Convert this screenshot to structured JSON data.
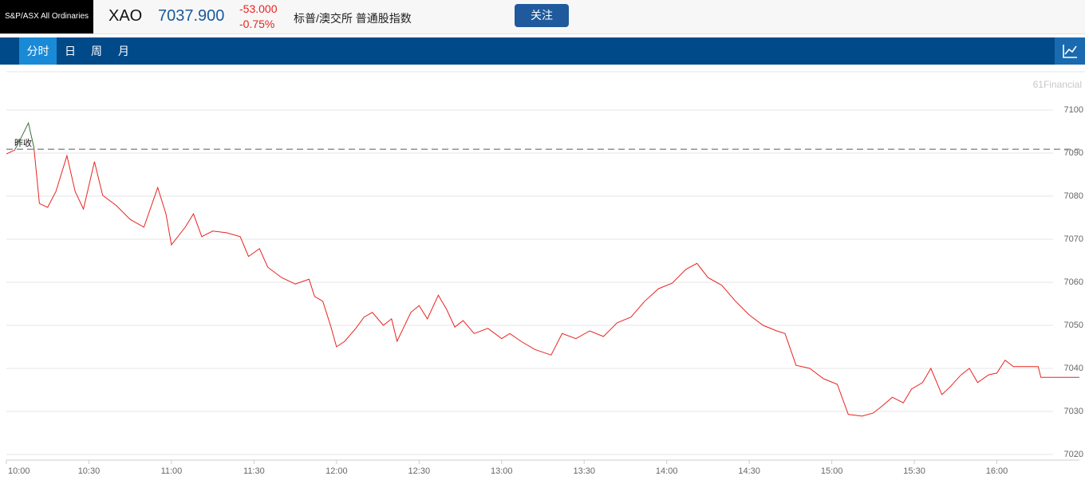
{
  "header": {
    "index_name": "S&P/ASX All Ordinaries",
    "symbol": "XAO",
    "price": "7037.900",
    "change": "-53.000",
    "change_pct": "-0.75%",
    "description": "标普/澳交所 普通股指数",
    "follow_button": "关注"
  },
  "tabs": [
    "分时",
    "日",
    "周",
    "月"
  ],
  "chart_data": {
    "type": "line",
    "watermark": "61Financial",
    "prev_close_label": "昨收",
    "prev_close": 7090.9,
    "x": [
      "10:00",
      "10:03",
      "10:05",
      "10:08",
      "10:10",
      "10:12",
      "10:15",
      "10:18",
      "10:22",
      "10:25",
      "10:28",
      "10:32",
      "10:35",
      "10:40",
      "10:45",
      "10:50",
      "10:55",
      "10:58",
      "11:00",
      "11:05",
      "11:08",
      "11:11",
      "11:15",
      "11:20",
      "11:25",
      "11:28",
      "11:32",
      "11:35",
      "11:40",
      "11:45",
      "11:50",
      "11:52",
      "11:55",
      "11:58",
      "12:00",
      "12:03",
      "12:07",
      "12:10",
      "12:13",
      "12:17",
      "12:20",
      "12:22",
      "12:27",
      "12:30",
      "12:33",
      "12:37",
      "12:40",
      "12:43",
      "12:46",
      "12:50",
      "12:55",
      "13:00",
      "13:03",
      "13:07",
      "13:12",
      "13:18",
      "13:22",
      "13:27",
      "13:32",
      "13:37",
      "13:42",
      "13:47",
      "13:52",
      "13:57",
      "14:02",
      "14:07",
      "14:11",
      "14:15",
      "14:20",
      "14:25",
      "14:30",
      "14:35",
      "14:40",
      "14:43",
      "14:47",
      "14:52",
      "14:57",
      "15:02",
      "15:06",
      "15:11",
      "15:15",
      "15:18",
      "15:22",
      "15:26",
      "15:29",
      "15:33",
      "15:36",
      "15:40",
      "15:43",
      "15:47",
      "15:50",
      "15:53",
      "15:57",
      "16:00",
      "16:03",
      "16:06",
      "16:15",
      "16:16",
      "16:30"
    ],
    "series": [
      {
        "name": "XAO",
        "color": "#e8231f",
        "color_above": "#3a6b3a",
        "values": [
          7089.8,
          7090.7,
          7093.1,
          7097,
          7091.3,
          7078.3,
          7077.4,
          7081.1,
          7089.4,
          7081.1,
          7077,
          7088,
          7080.2,
          7077.8,
          7074.6,
          7072.8,
          7082,
          7075.9,
          7068.7,
          7072.8,
          7075.9,
          7070.6,
          7071.9,
          7071.5,
          7070.6,
          7066,
          7067.8,
          7063.5,
          7061.1,
          7059.6,
          7060.7,
          7056.7,
          7055.6,
          7049.6,
          7045,
          7046.3,
          7049.3,
          7051.9,
          7053,
          7050,
          7051.5,
          7046.3,
          7053,
          7054.6,
          7051.5,
          7057,
          7053.7,
          7049.6,
          7051.1,
          7048.1,
          7049.3,
          7046.9,
          7048.1,
          7046.3,
          7044.4,
          7043.1,
          7048.1,
          7046.9,
          7048.7,
          7047.4,
          7050.6,
          7051.9,
          7055.6,
          7058.5,
          7059.8,
          7063,
          7064.4,
          7061.1,
          7059.3,
          7055.6,
          7052.4,
          7050,
          7048.7,
          7048.1,
          7040.7,
          7040,
          7037.6,
          7036.3,
          7029.3,
          7028.9,
          7029.6,
          7031.1,
          7033.3,
          7032,
          7035.2,
          7036.7,
          7040,
          7033.9,
          7035.7,
          7038.5,
          7040,
          7036.7,
          7038.5,
          7038.9,
          7041.9,
          7040.4,
          7040.4,
          7037.9,
          7037.9
        ]
      }
    ],
    "xlim": [
      "10:00",
      "16:30"
    ],
    "xticks": [
      "10:00",
      "10:30",
      "11:00",
      "11:30",
      "12:00",
      "12:30",
      "13:00",
      "13:30",
      "14:00",
      "14:30",
      "15:00",
      "15:30",
      "16:00"
    ],
    "ylim": [
      7018.7,
      7108.9
    ],
    "yticks": [
      7020,
      7030,
      7040,
      7050,
      7060,
      7070,
      7080,
      7090,
      7100
    ],
    "grid": true
  }
}
